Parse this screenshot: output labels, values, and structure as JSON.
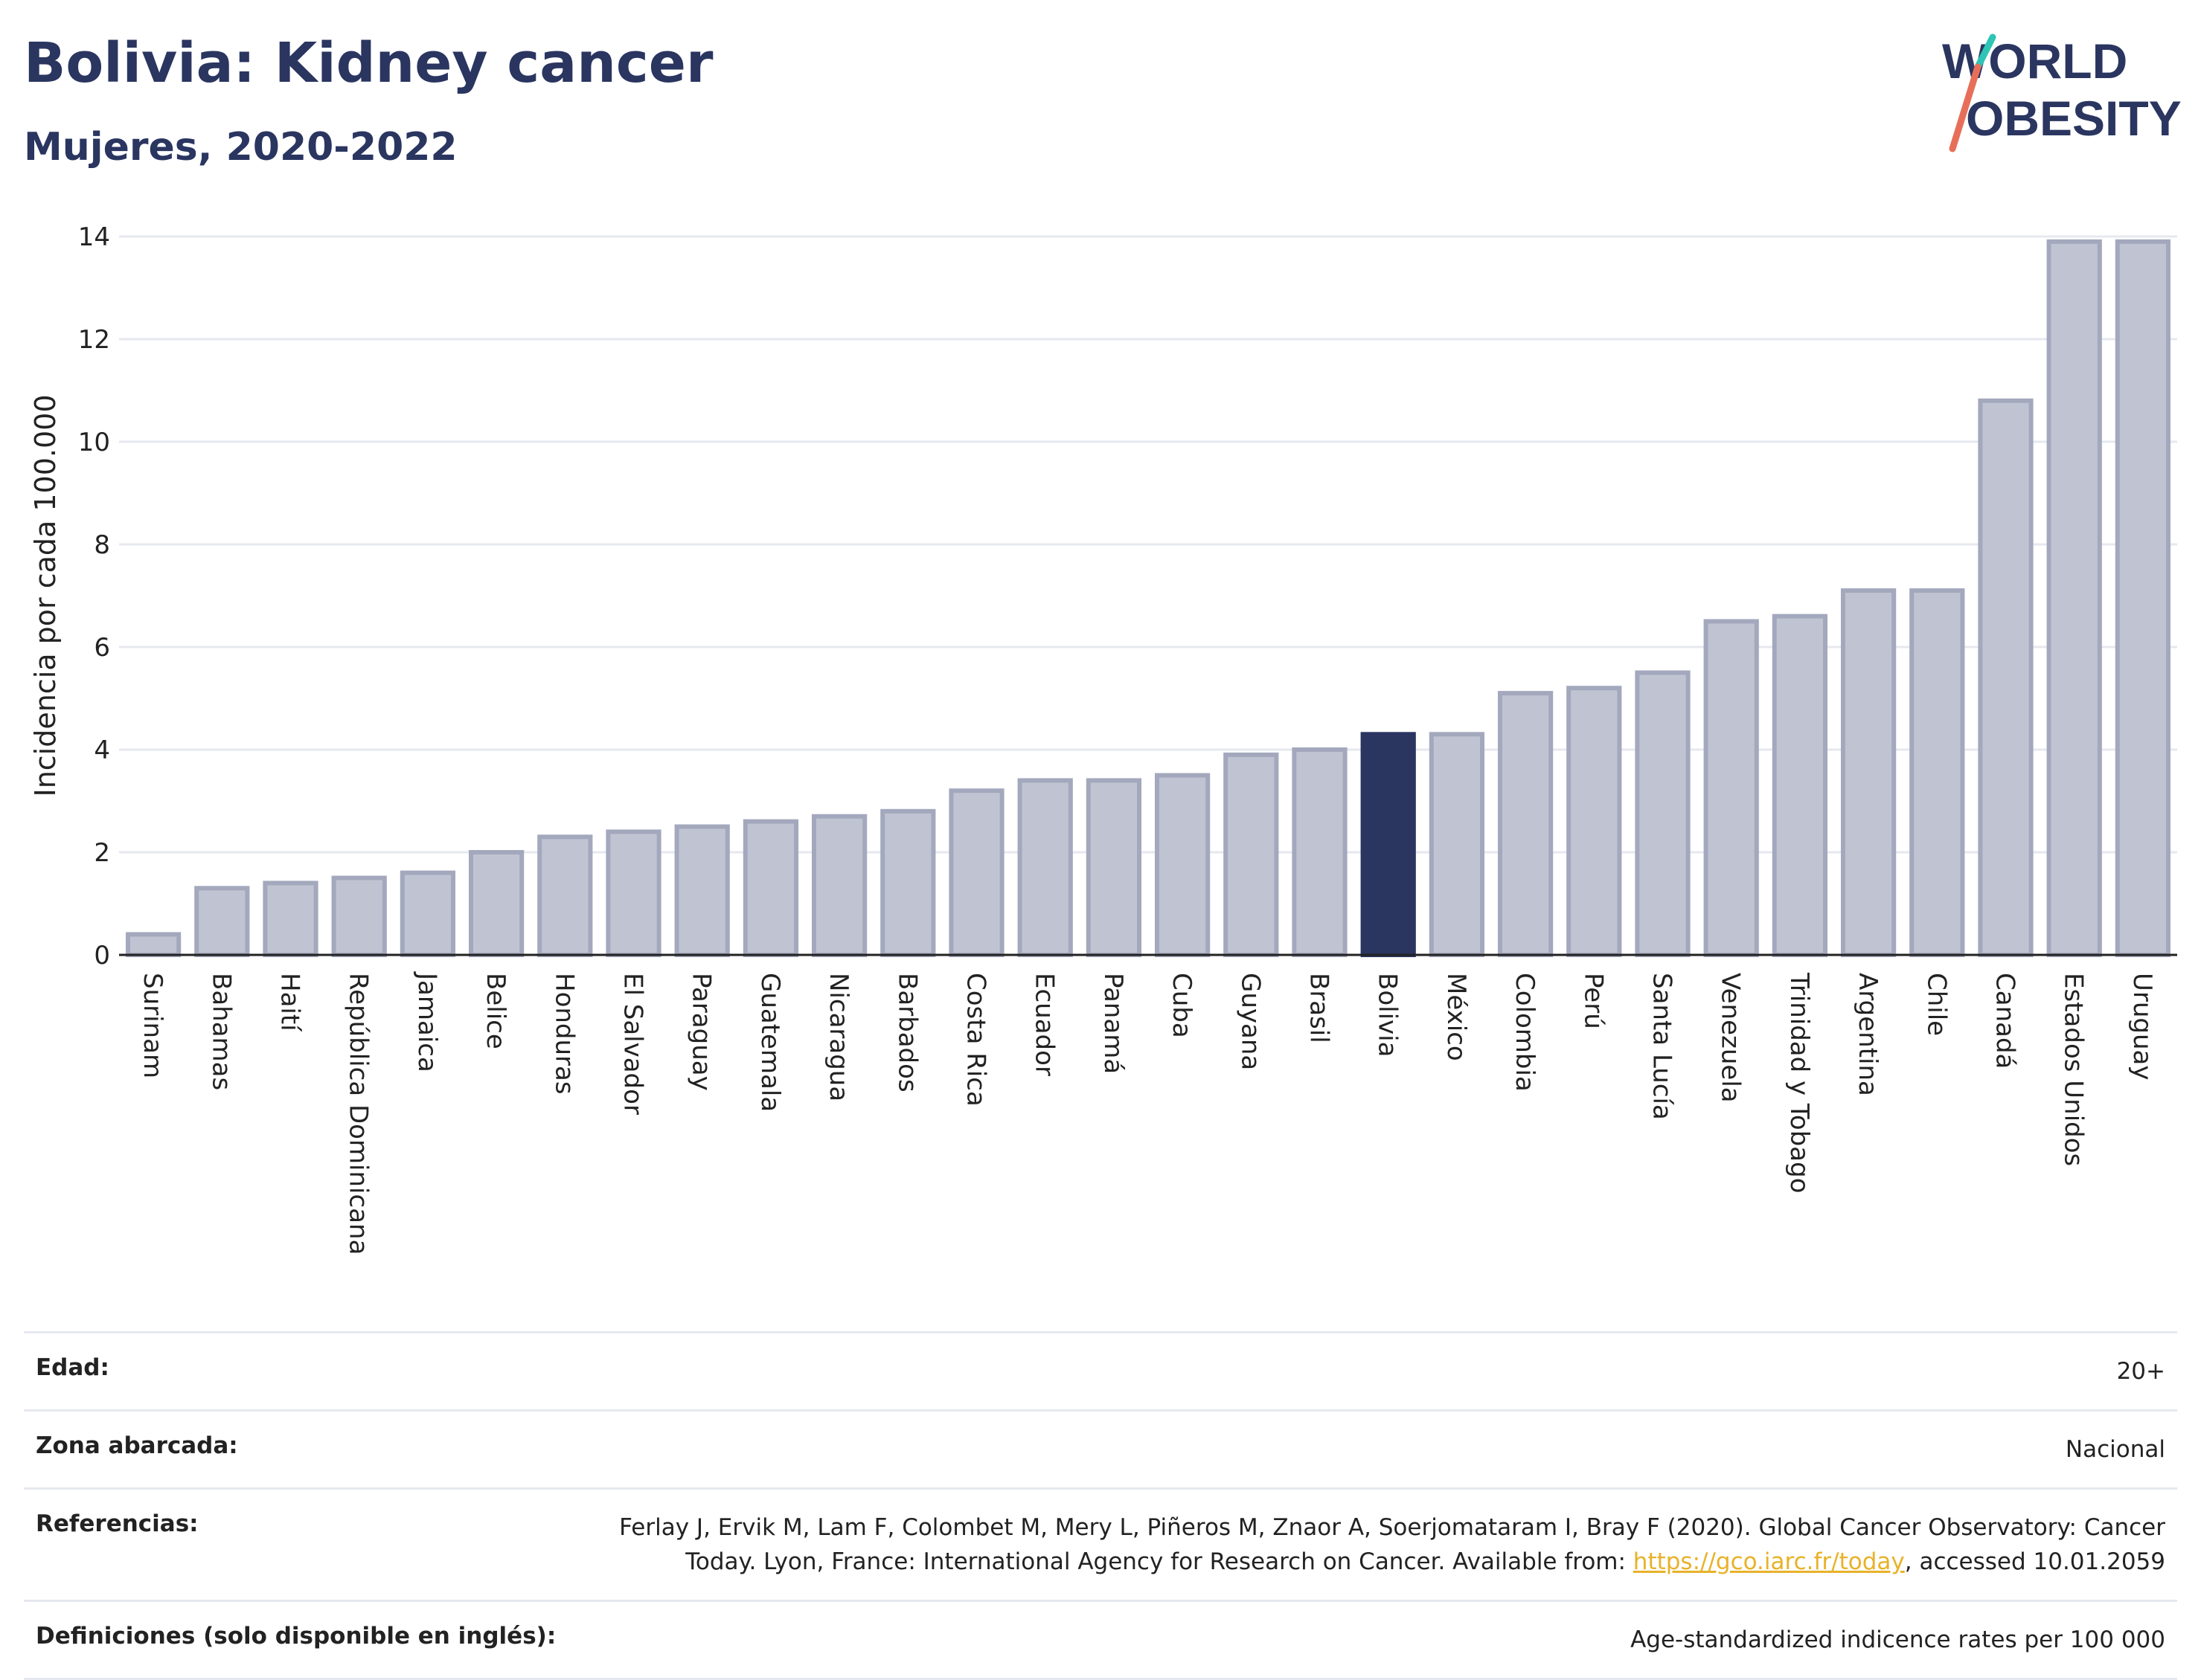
{
  "header": {
    "title": "Bolivia: Kidney cancer",
    "subtitle": "Mujeres, 2020-2022"
  },
  "logo": {
    "line1": "WORLD",
    "line2": "OBESITY"
  },
  "colors": {
    "bar": "#c0c4d2",
    "bar_border": "#a3a8bd",
    "highlight": "#2a3560",
    "grid": "#e6e8ef",
    "accent_red": "#e76f5a",
    "accent_teal": "#2ec4b6"
  },
  "chart_data": {
    "type": "bar",
    "ylabel": "Incidencia por cada 100.000",
    "ylim": [
      0,
      14
    ],
    "yticks": [
      0,
      2,
      4,
      6,
      8,
      10,
      12,
      14
    ],
    "highlight": "Bolivia",
    "categories": [
      "Surinam",
      "Bahamas",
      "Haití",
      "República Dominicana",
      "Jamaica",
      "Belice",
      "Honduras",
      "El Salvador",
      "Paraguay",
      "Guatemala",
      "Nicaragua",
      "Barbados",
      "Costa Rica",
      "Ecuador",
      "Panamá",
      "Cuba",
      "Guyana",
      "Brasil",
      "Bolivia",
      "México",
      "Colombia",
      "Perú",
      "Santa Lucía",
      "Venezuela",
      "Trinidad y Tobago",
      "Argentina",
      "Chile",
      "Canadá",
      "Estados Unidos",
      "Uruguay"
    ],
    "values": [
      0.4,
      1.3,
      1.4,
      1.5,
      1.6,
      2.0,
      2.3,
      2.4,
      2.5,
      2.6,
      2.7,
      2.8,
      3.2,
      3.4,
      3.4,
      3.5,
      3.9,
      4.0,
      4.3,
      4.3,
      5.1,
      5.2,
      5.5,
      6.5,
      6.6,
      7.1,
      7.1,
      10.8,
      13.9,
      13.9
    ]
  },
  "info": {
    "edad_label": "Edad:",
    "edad_value": "20+",
    "zona_label": "Zona abarcada:",
    "zona_value": "Nacional",
    "ref_label": "Referencias:",
    "ref_text_1": "Ferlay J, Ervik M, Lam F, Colombet M, Mery L, Piñeros M, Znaor A, Soerjomataram I, Bray F (2020). Global Cancer Observatory: Cancer Today. Lyon, France: International Agency for Research on Cancer. Available from: ",
    "ref_link": "https://gco.iarc.fr/today",
    "ref_text_2": ", accessed 10.01.2059",
    "def_label": "Definiciones (solo disponible en inglés):",
    "def_value": "Age-standardized indicence rates per 100 000"
  }
}
